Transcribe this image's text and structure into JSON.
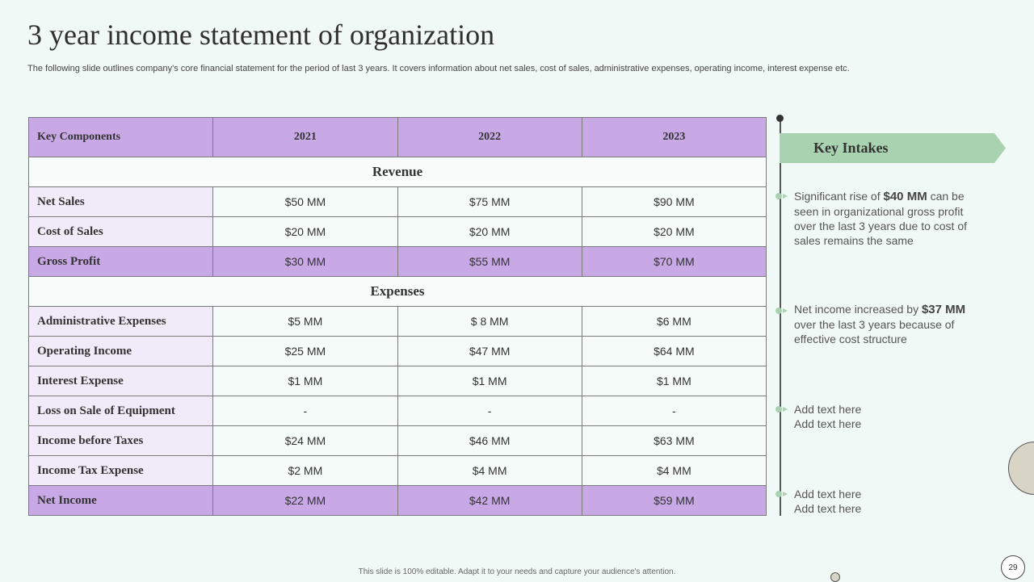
{
  "title": "3 year income statement of organization",
  "subtitle": "The following slide outlines company's core financial statement for the period of last 3 years. It covers information about net sales, cost of sales, administrative expenses, operating income, interest expense etc.",
  "table": {
    "headers": [
      "Key Components",
      "2021",
      "2022",
      "2023"
    ],
    "revenue_label": "Revenue",
    "expenses_label": "Expenses",
    "revenue_rows": [
      {
        "label": "Net Sales",
        "values": [
          "$50 MM",
          "$75 MM",
          "$90 MM"
        ]
      },
      {
        "label": "Cost of Sales",
        "values": [
          "$20 MM",
          "$20 MM",
          "$20 MM"
        ]
      },
      {
        "label": "Gross Profit",
        "values": [
          "$30 MM",
          "$55 MM",
          "$70 MM"
        ]
      }
    ],
    "expense_rows": [
      {
        "label": "Administrative  Expenses",
        "values": [
          "$5 MM",
          "$ 8 MM",
          "$6 MM"
        ]
      },
      {
        "label": "Operating  Income",
        "values": [
          "$25 MM",
          "$47 MM",
          "$64 MM"
        ]
      },
      {
        "label": "Interest Expense",
        "values": [
          "$1 MM",
          "$1 MM",
          "$1 MM"
        ]
      },
      {
        "label": "Loss on Sale of Equipment",
        "values": [
          "-",
          "-",
          "-"
        ]
      },
      {
        "label": "Income  before Taxes",
        "values": [
          "$24 MM",
          "$46 MM",
          "$63 MM"
        ]
      },
      {
        "label": "Income Tax Expense",
        "values": [
          "$2 MM",
          "$4 MM",
          "$4 MM"
        ]
      },
      {
        "label": "Net Income",
        "values": [
          "$22 MM",
          "$42 MM",
          "$59 MM"
        ]
      }
    ]
  },
  "key_intakes": {
    "title": "Key Intakes",
    "item1": {
      "pre": "Significant rise of ",
      "bold": "$40 MM",
      "post": " can be seen in organizational  gross profit over the last 3 years due to cost of sales remains the same"
    },
    "item2": {
      "pre": "Net income increased by ",
      "bold": "$37 MM",
      "post": " over the last 3 years because of effective cost structure"
    },
    "item3": {
      "line1": "Add text here",
      "line2": "Add text here"
    },
    "item4": {
      "line1": "Add text here",
      "line2": "Add text here"
    }
  },
  "footer": "This slide is 100% editable.  Adapt it to your needs and capture your audience's attention.",
  "page_number": "29"
}
